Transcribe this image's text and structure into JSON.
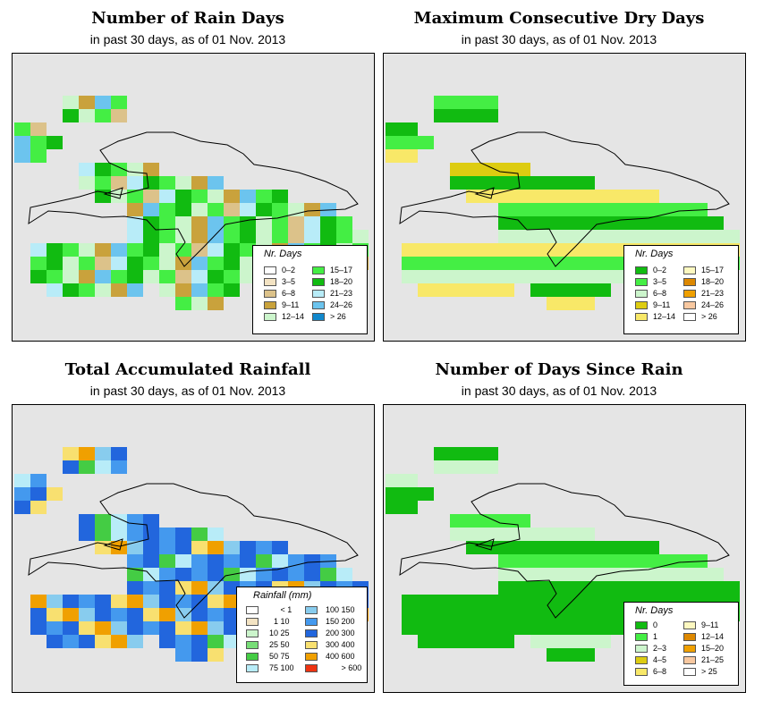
{
  "panels": [
    {
      "id": "rain-days",
      "title": "Number of Rain Days",
      "subtitle": "in past 30 days, as of  01 Nov. 2013",
      "legend": {
        "title": "Nr. Days",
        "items": [
          {
            "label": "0–2",
            "color": "#ffffff"
          },
          {
            "label": "3–5",
            "color": "#f3e3c3"
          },
          {
            "label": "6–8",
            "color": "#dcc28a"
          },
          {
            "label": "9–11",
            "color": "#c9a23c"
          },
          {
            "label": "12–14",
            "color": "#ccf5cc"
          },
          {
            "label": "15–17",
            "color": "#44ee44"
          },
          {
            "label": "18–20",
            "color": "#11bb11"
          },
          {
            "label": "21–23",
            "color": "#b8ecf8"
          },
          {
            "label": "24–26",
            "color": "#6cc4ee"
          },
          {
            "label": "> 26",
            "color": "#1188cc"
          }
        ]
      }
    },
    {
      "id": "dry-days",
      "title": "Maximum Consecutive Dry Days",
      "subtitle": "in past 30 days, as of  01 Nov. 2013",
      "legend": {
        "title": "Nr. Days",
        "items": [
          {
            "label": "0–2",
            "color": "#11bb11"
          },
          {
            "label": "3–5",
            "color": "#44ee44"
          },
          {
            "label": "6–8",
            "color": "#ccf5cc"
          },
          {
            "label": "9–11",
            "color": "#ddcc11"
          },
          {
            "label": "12–14",
            "color": "#f8e868"
          },
          {
            "label": "15–17",
            "color": "#fdf8c0"
          },
          {
            "label": "18–20",
            "color": "#dd8800"
          },
          {
            "label": "21–23",
            "color": "#f0a000"
          },
          {
            "label": "24–26",
            "color": "#f8c8a0"
          },
          {
            "label": "> 26",
            "color": "#ffffff"
          }
        ]
      }
    },
    {
      "id": "rainfall",
      "title": "Total Accumulated Rainfall",
      "subtitle": "in past 30 days, as of  01 Nov. 2013",
      "legend": {
        "title": "Rainfall (mm)",
        "items": [
          {
            "from": "",
            "to": "< 1",
            "color": "#ffffff"
          },
          {
            "from": "1",
            "to": "10",
            "color": "#f3e3c3"
          },
          {
            "from": "10",
            "to": "25",
            "color": "#ccf5cc"
          },
          {
            "from": "25",
            "to": "50",
            "color": "#77dd77"
          },
          {
            "from": "50",
            "to": "75",
            "color": "#44cc44"
          },
          {
            "from": "75",
            "to": "100",
            "color": "#b8ecf8"
          },
          {
            "from": "100",
            "to": "150",
            "color": "#88ccee"
          },
          {
            "from": "150",
            "to": "200",
            "color": "#4499ee"
          },
          {
            "from": "200",
            "to": "300",
            "color": "#2266dd"
          },
          {
            "from": "300",
            "to": "400",
            "color": "#f8e070"
          },
          {
            "from": "400",
            "to": "600",
            "color": "#f0a000"
          },
          {
            "from": "",
            "to": "> 600",
            "color": "#ee3311"
          }
        ]
      }
    },
    {
      "id": "days-since-rain",
      "title": "Number of Days Since Rain",
      "subtitle": "in past 30 days, as of  01 Nov. 2013",
      "legend": {
        "title": "Nr. Days",
        "items": [
          {
            "label": "0",
            "color": "#11bb11"
          },
          {
            "label": "1",
            "color": "#44ee44"
          },
          {
            "label": "2–3",
            "color": "#ccf5cc"
          },
          {
            "label": "4–5",
            "color": "#ddcc11"
          },
          {
            "label": "6–8",
            "color": "#f8e868"
          },
          {
            "label": "9–11",
            "color": "#fdf8c0"
          },
          {
            "label": "12–14",
            "color": "#dd8800"
          },
          {
            "label": "15–20",
            "color": "#f0a000"
          },
          {
            "label": "21–25",
            "color": "#f8c8a0"
          },
          {
            "label": "> 25",
            "color": "#ffffff"
          }
        ]
      }
    }
  ]
}
